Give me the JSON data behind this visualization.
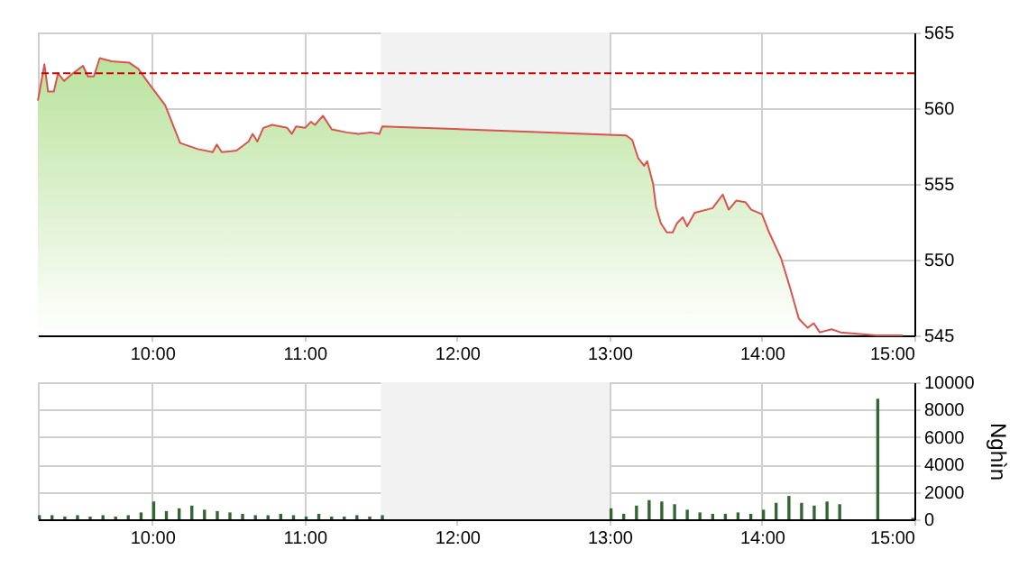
{
  "chart_data": [
    {
      "type": "area",
      "x": [
        9.25,
        9.293,
        9.317,
        9.355,
        9.382,
        9.422,
        9.48,
        9.546,
        9.578,
        9.617,
        9.656,
        9.734,
        9.85,
        9.909,
        9.988,
        10.085,
        10.183,
        10.3,
        10.397,
        10.424,
        10.456,
        10.553,
        10.632,
        10.659,
        10.69,
        10.729,
        10.787,
        10.886,
        10.916,
        10.944,
        11.003,
        11.041,
        11.068,
        11.12,
        11.178,
        11.276,
        11.354,
        11.432,
        11.49,
        11.51,
        12.33,
        13.11,
        13.149,
        13.188,
        13.227,
        13.247,
        13.286,
        13.305,
        13.337,
        13.376,
        13.415,
        13.442,
        13.481,
        13.509,
        13.559,
        13.676,
        13.743,
        13.782,
        13.832,
        13.891,
        13.93,
        14.0,
        14.047,
        14.125,
        14.183,
        14.242,
        14.3,
        14.34,
        14.379,
        14.457,
        14.516,
        14.75,
        14.925
      ],
      "series": [
        {
          "color": "#b9e29c",
          "values": [
            560.5,
            562.9,
            561.1,
            561.1,
            562.3,
            561.8,
            562.3,
            562.8,
            562.1,
            562.1,
            563.3,
            563.1,
            563.0,
            562.6,
            561.5,
            560.2,
            557.7,
            557.3,
            557.1,
            557.6,
            557.1,
            557.2,
            557.8,
            558.3,
            557.8,
            558.7,
            558.9,
            558.7,
            558.3,
            558.8,
            558.7,
            559.1,
            558.9,
            559.5,
            558.6,
            558.4,
            558.3,
            558.4,
            558.3,
            558.8,
            558.5,
            558.2,
            557.9,
            556.7,
            556.2,
            556.5,
            555.0,
            553.5,
            552.4,
            551.8,
            551.8,
            552.4,
            552.8,
            552.2,
            553.1,
            553.4,
            554.3,
            553.3,
            553.9,
            553.8,
            553.3,
            553.0,
            551.8,
            550.1,
            548.2,
            546.1,
            545.5,
            545.8,
            545.2,
            545.4,
            545.2,
            545.0,
            545.0
          ]
        }
      ],
      "xlim": [
        9.25,
        15
      ],
      "xticks": [
        {
          "value": 10,
          "label": "10:00"
        },
        {
          "value": 11,
          "label": "11:00"
        },
        {
          "value": 12,
          "label": "12:00"
        },
        {
          "value": 13,
          "label": "13:00"
        },
        {
          "value": 14,
          "label": "14:00"
        },
        {
          "value": 15,
          "label": "15:00"
        }
      ],
      "ylim": [
        545,
        565
      ],
      "yticks": [
        545,
        550,
        555,
        560,
        565
      ],
      "ref_lines": [
        {
          "axis": "y",
          "value": 562.3,
          "color": "#cc0000",
          "line_style": "dashed"
        }
      ],
      "bands": [
        {
          "axis": "x",
          "from": 11.5,
          "to": 13,
          "color": "#f2f2f2"
        }
      ],
      "grid": true
    },
    {
      "type": "bar",
      "ylabel": "Nghìn",
      "x": [
        9.25,
        9.333,
        9.417,
        9.5,
        9.583,
        9.667,
        9.75,
        9.833,
        9.917,
        10.0,
        10.083,
        10.167,
        10.25,
        10.333,
        10.417,
        10.5,
        10.583,
        10.667,
        10.75,
        10.833,
        10.917,
        11.0,
        11.083,
        11.167,
        11.25,
        11.333,
        11.417,
        11.5,
        13.0,
        13.083,
        13.167,
        13.25,
        13.333,
        13.417,
        13.5,
        13.583,
        13.667,
        13.75,
        13.833,
        13.917,
        14.0,
        14.083,
        14.167,
        14.25,
        14.333,
        14.417,
        14.5,
        14.75,
        14.98
      ],
      "series": [
        {
          "color": "#336633",
          "values": [
            300,
            300,
            200,
            300,
            200,
            300,
            200,
            300,
            500,
            1300,
            600,
            800,
            1000,
            700,
            600,
            500,
            400,
            300,
            300,
            400,
            300,
            200,
            400,
            200,
            200,
            300,
            200,
            300,
            800,
            400,
            1000,
            1400,
            1300,
            1100,
            700,
            500,
            400,
            400,
            500,
            400,
            700,
            1200,
            1700,
            1200,
            1000,
            1300,
            1100,
            8800,
            100
          ]
        }
      ],
      "xlim": [
        9.25,
        15
      ],
      "xticks": [
        {
          "value": 10,
          "label": "10:00"
        },
        {
          "value": 11,
          "label": "11:00"
        },
        {
          "value": 12,
          "label": "12:00"
        },
        {
          "value": 13,
          "label": "13:00"
        },
        {
          "value": 14,
          "label": "14:00"
        },
        {
          "value": 15,
          "label": "15:00"
        }
      ],
      "ylim": [
        0,
        10000
      ],
      "yticks": [
        0,
        2000,
        4000,
        6000,
        8000,
        10000
      ],
      "bands": [
        {
          "axis": "x",
          "from": 11.5,
          "to": 13,
          "color": "#f2f2f2"
        }
      ],
      "grid": true
    }
  ]
}
